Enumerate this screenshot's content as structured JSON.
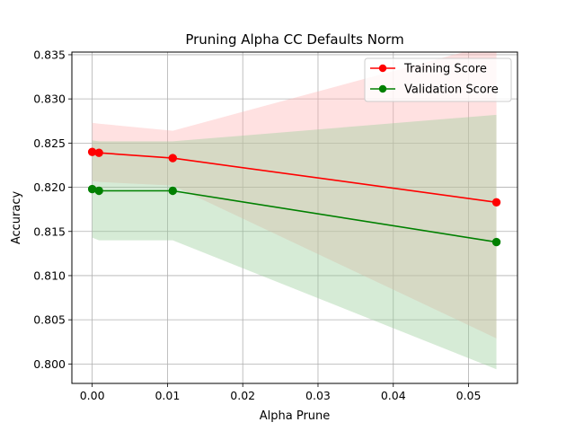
{
  "chart_data": {
    "type": "line",
    "title": "Pruning Alpha CC Defaults Norm",
    "xlabel": "Alpha Prune",
    "ylabel": "Accuracy",
    "xlim": [
      -0.0027,
      0.0565
    ],
    "ylim": [
      0.7978,
      0.8353
    ],
    "xticks": [
      0.0,
      0.01,
      0.02,
      0.03,
      0.04,
      0.05
    ],
    "xtick_labels": [
      "0.00",
      "0.01",
      "0.02",
      "0.03",
      "0.04",
      "0.05"
    ],
    "yticks": [
      0.8,
      0.805,
      0.81,
      0.815,
      0.82,
      0.825,
      0.83,
      0.835
    ],
    "ytick_labels": [
      "0.800",
      "0.805",
      "0.810",
      "0.815",
      "0.820",
      "0.825",
      "0.830",
      "0.835"
    ],
    "grid": true,
    "legend_position": "top-right",
    "x": [
      0.0,
      0.0009,
      0.0107,
      0.0537
    ],
    "series": [
      {
        "name": "Training Score",
        "color": "#ff0000",
        "fill_color": "#ffb3b3",
        "values": [
          0.824,
          0.8239,
          0.8233,
          0.8183
        ],
        "band_upper": [
          0.8273,
          0.8272,
          0.8264,
          0.8363
        ],
        "band_lower": [
          0.8207,
          0.8206,
          0.8202,
          0.8029
        ]
      },
      {
        "name": "Validation Score",
        "color": "#008000",
        "fill_color": "#99cc99",
        "values": [
          0.8198,
          0.8196,
          0.8196,
          0.8138
        ],
        "band_upper": [
          0.8253,
          0.8252,
          0.8252,
          0.8282
        ],
        "band_lower": [
          0.8143,
          0.814,
          0.814,
          0.7994
        ]
      }
    ]
  }
}
